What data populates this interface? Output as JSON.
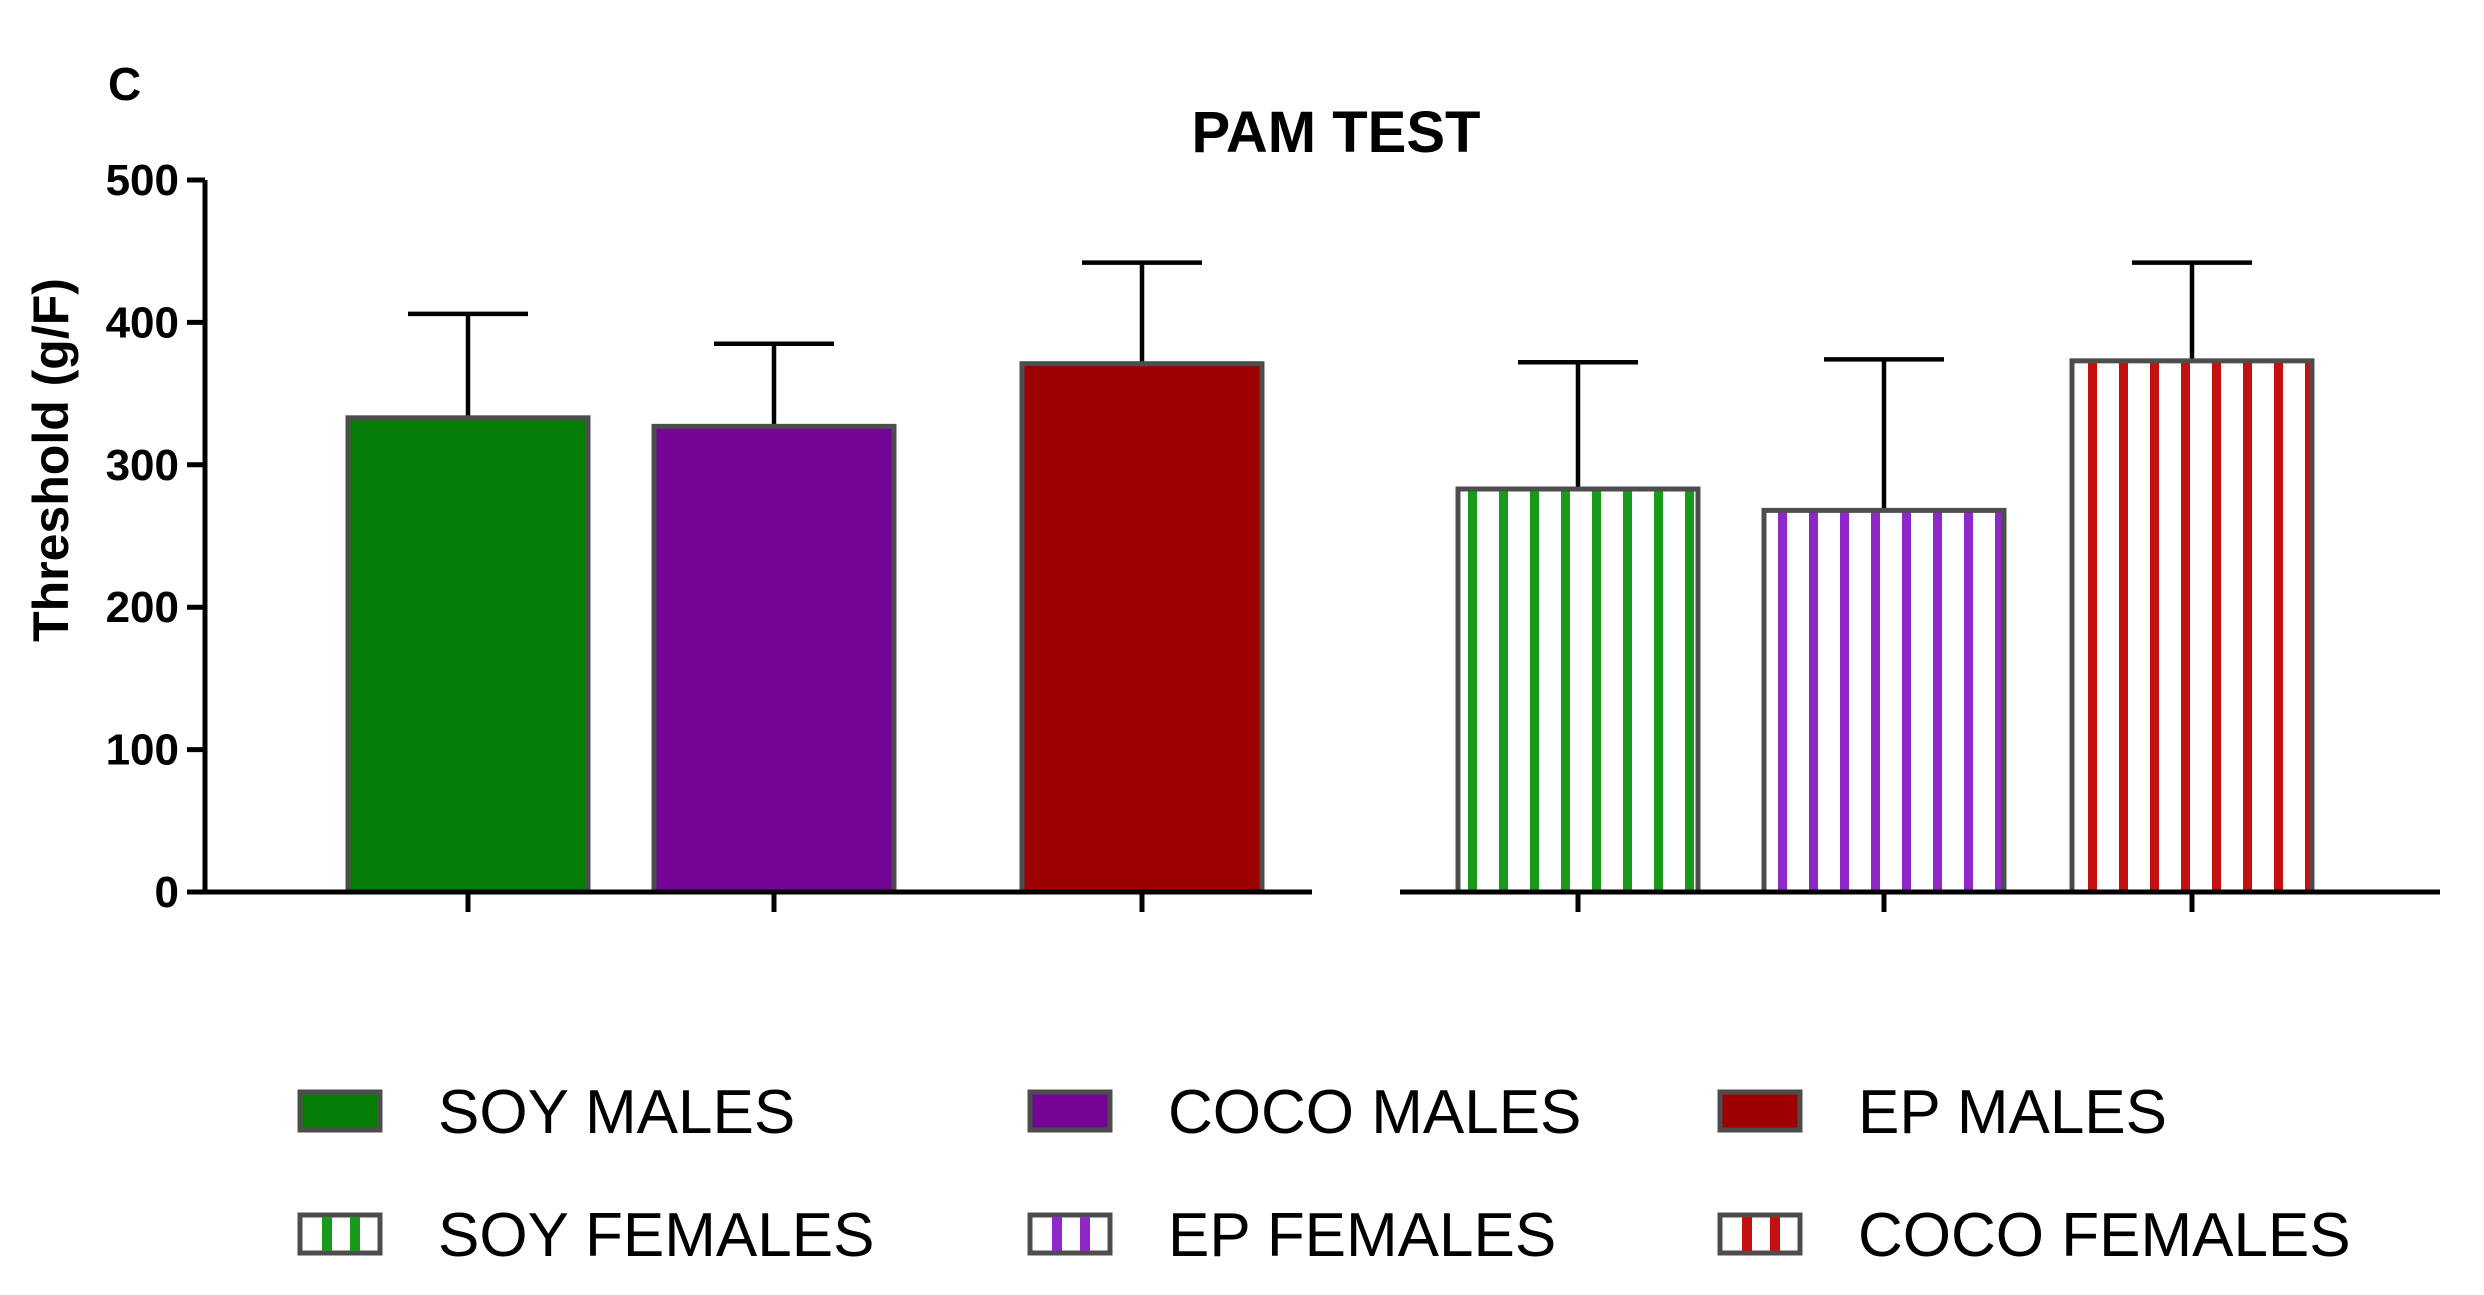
{
  "panel_label": "C",
  "chart_data": {
    "type": "bar",
    "title": "PAM TEST",
    "xlabel": "",
    "ylabel": "Threshold (g/F)",
    "ylim": [
      0,
      500
    ],
    "yticks": [
      "0",
      "100",
      "200",
      "300",
      "400",
      "500"
    ],
    "grid": false,
    "legend_position": "bottom",
    "groups": [
      {
        "series": [
          {
            "name": "SOY MALES",
            "value": 333,
            "error": 73,
            "color": "#067d06",
            "pattern": "solid"
          },
          {
            "name": "COCO MALES",
            "value": 327,
            "error": 58,
            "color": "#740494",
            "pattern": "solid"
          },
          {
            "name": "EP MALES",
            "value": 371,
            "error": 71,
            "color": "#9c0000",
            "pattern": "solid"
          }
        ]
      },
      {
        "series": [
          {
            "name": "SOY FEMALES",
            "value": 283,
            "error": 89,
            "color": "#1a9a1a",
            "pattern": "vertical-stripes"
          },
          {
            "name": "EP FEMALES",
            "value": 268,
            "error": 106,
            "color": "#8e28c8",
            "pattern": "vertical-stripes"
          },
          {
            "name": "COCO FEMALES",
            "value": 373,
            "error": 69,
            "color": "#c41010",
            "pattern": "vertical-stripes"
          }
        ]
      }
    ]
  }
}
